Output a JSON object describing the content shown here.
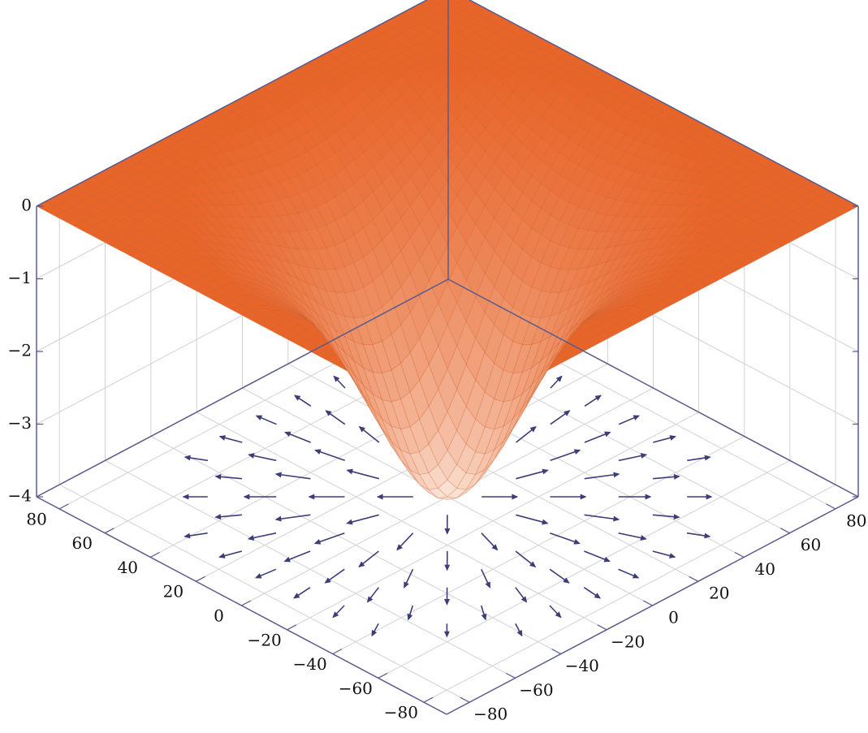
{
  "chart_data": {
    "type": "surface",
    "title": "",
    "xlabel": "",
    "ylabel": "",
    "zlabel": "",
    "x_ticks": [
      -80,
      -60,
      -40,
      -20,
      0,
      20,
      40,
      60,
      80
    ],
    "y_ticks": [
      -80,
      -60,
      -40,
      -20,
      0,
      20,
      40,
      60,
      80
    ],
    "z_ticks": [
      0,
      -1,
      -2,
      -3,
      -4
    ],
    "x_tick_labels": [
      "−80",
      "−60",
      "−40",
      "−20",
      "0",
      "20",
      "40",
      "60",
      "80"
    ],
    "y_tick_labels": [
      "−80",
      "−60",
      "−40",
      "−20",
      "0",
      "20",
      "40",
      "60",
      "80"
    ],
    "z_tick_labels": [
      "0",
      "−1",
      "−2",
      "−3",
      "−4"
    ],
    "xlim": [
      -90,
      90
    ],
    "ylim": [
      -90,
      90
    ],
    "zlim": [
      -4,
      0
    ],
    "surface_min": -4,
    "surface_max": 0,
    "surface_color": "#e8652a",
    "surface_color_low": "#fbe9de",
    "floor_plot": "gradient vector field (arrows)",
    "arrow_color": "#3d3d78",
    "grid": true,
    "legend": "none"
  }
}
